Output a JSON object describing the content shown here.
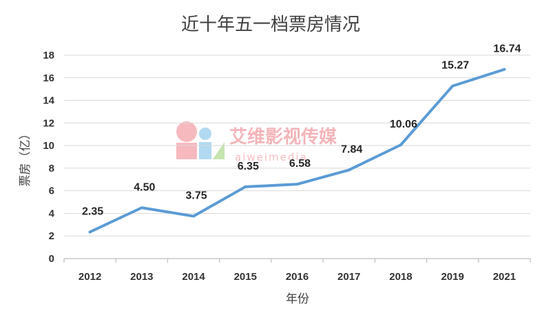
{
  "chart_data": {
    "type": "line",
    "title": "近十年五一档票房情况",
    "xlabel": "年份",
    "ylabel": "票房（亿）",
    "categories": [
      "2012",
      "2013",
      "2014",
      "2015",
      "2016",
      "2017",
      "2018",
      "2019",
      "2021"
    ],
    "series": [
      {
        "values": [
          2.35,
          4.5,
          3.75,
          6.35,
          6.58,
          7.84,
          10.06,
          15.27,
          16.74
        ],
        "labels": [
          "2.35",
          "4.50",
          "3.75",
          "6.35",
          "6.58",
          "7.84",
          "10.06",
          "15.27",
          "16.74"
        ],
        "color": "#5b9bd5"
      }
    ],
    "ylim": [
      0,
      18
    ],
    "yticks": [
      "0",
      "2",
      "4",
      "6",
      "8",
      "10",
      "12",
      "14",
      "16",
      "18"
    ],
    "grid": true,
    "legend": "none"
  },
  "watermark": {
    "brand_cn": "艾维影视传媒",
    "brand_en": "aiweimedia"
  },
  "colors": {
    "grid": "#d9d9d9",
    "axis": "#bfbfbf",
    "line": "#5b9bd5"
  }
}
